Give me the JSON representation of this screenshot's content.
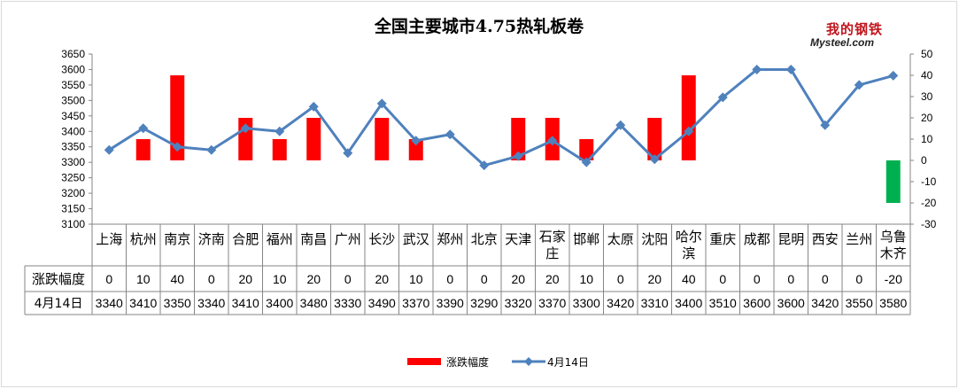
{
  "chart_data": {
    "type": "bar+line",
    "title": "全国主要城市4.75热轧板卷",
    "categories": [
      "上海",
      "杭州",
      "南京",
      "济南",
      "合肥",
      "福州",
      "南昌",
      "广州",
      "长沙",
      "武汉",
      "郑州",
      "北京",
      "天津",
      "石家庄",
      "邯郸",
      "太原",
      "沈阳",
      "哈尔滨",
      "重庆",
      "成都",
      "昆明",
      "西安",
      "兰州",
      "乌鲁木齐"
    ],
    "series": [
      {
        "name": "涨跌幅度",
        "type": "bar",
        "axis": "right",
        "color": "#ff0000",
        "negative_color": "#00b050",
        "values": [
          0,
          10,
          40,
          0,
          20,
          10,
          20,
          0,
          20,
          10,
          0,
          0,
          20,
          20,
          10,
          0,
          20,
          40,
          0,
          0,
          0,
          0,
          0,
          -20
        ],
        "display": [
          "0",
          "10",
          "40",
          "0",
          "20",
          "10",
          "20",
          "0",
          "20",
          "10",
          "0",
          "0",
          "20",
          "20",
          "10",
          "0",
          "20",
          "40",
          "0",
          "0",
          "0",
          "0",
          "0",
          "-20"
        ]
      },
      {
        "name": "4月14日",
        "type": "line",
        "axis": "left",
        "color": "#4f81bd",
        "values": [
          3340,
          3410,
          3350,
          3340,
          3410,
          3400,
          3480,
          3330,
          3490,
          3370,
          3390,
          3290,
          3320,
          3370,
          3300,
          3420,
          3310,
          3400,
          3510,
          3600,
          3600,
          3420,
          3550,
          3580
        ],
        "display": [
          "3340",
          "3410",
          "3350",
          "3340",
          "3410",
          "3400",
          "3480",
          "3330",
          "3490",
          "3370",
          "3390",
          "3290",
          "3320",
          "3370",
          "3300",
          "3420",
          "3310",
          "3400",
          "3510",
          "3600",
          "3600",
          "3420",
          "3550",
          "3580"
        ]
      }
    ],
    "y_left": {
      "min": 3100,
      "max": 3650,
      "step": 50,
      "ticks": [
        "3100",
        "3150",
        "3200",
        "3250",
        "3300",
        "3350",
        "3400",
        "3450",
        "3500",
        "3550",
        "3600",
        "3650"
      ]
    },
    "y_right": {
      "min": -30,
      "max": 50,
      "step": 10,
      "ticks": [
        "-30",
        "-20",
        "-10",
        "0",
        "10",
        "20",
        "30",
        "40",
        "50"
      ]
    },
    "grid": false,
    "legend": "bottom",
    "data_table": true
  },
  "logo": {
    "cn": "我的钢铁",
    "en": "Mysteel.com"
  }
}
